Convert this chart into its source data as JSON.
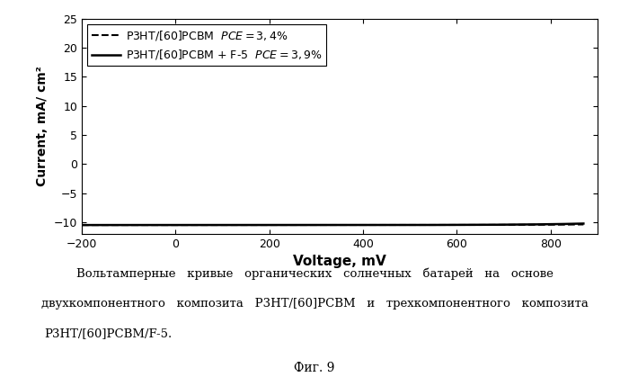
{
  "xlabel": "Voltage, mV",
  "ylabel": "Current, mA/ cm²",
  "xlim": [
    -200,
    900
  ],
  "ylim": [
    -12,
    25
  ],
  "xticks": [
    -200,
    0,
    200,
    400,
    600,
    800
  ],
  "yticks": [
    -10,
    -5,
    0,
    5,
    10,
    15,
    20,
    25
  ],
  "legend_label_dashed": "P3HT/[60]PCBM  PCE = 3,4%",
  "legend_label_solid": "P3HT/[60]PCBM + F-5  PCE = 3,9%",
  "caption_line1": "Вольтамперные   кривые   органических   солнечных   батарей   на   основе",
  "caption_line2": "двухкомпонентного   композита   P3HT/[60]PCBM   и   трехкомпонентного   композита",
  "caption_line3": "P3HT/[60]PCBM/F-5.",
  "fig_label": "Фиг. 9",
  "background_color": "#ffffff",
  "line_color": "#000000"
}
